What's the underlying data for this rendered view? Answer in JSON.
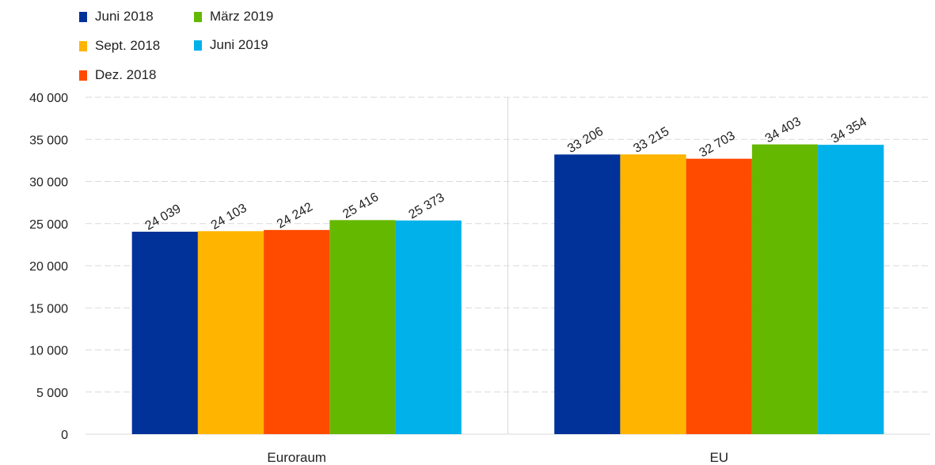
{
  "chart_data": {
    "type": "bar",
    "categories": [
      "Euroraum",
      "EU"
    ],
    "series": [
      {
        "name": "Juni 2018",
        "color": "#003299",
        "values": [
          24039,
          33206
        ],
        "labels": [
          "24 039",
          "33 206"
        ]
      },
      {
        "name": "Sept. 2018",
        "color": "#FFB400",
        "values": [
          24103,
          33215
        ],
        "labels": [
          "24 103",
          "33 215"
        ]
      },
      {
        "name": "Dez. 2018",
        "color": "#FF4B00",
        "values": [
          24242,
          32703
        ],
        "labels": [
          "24 242",
          "32 703"
        ]
      },
      {
        "name": "März 2019",
        "color": "#65B800",
        "values": [
          25416,
          34403
        ],
        "labels": [
          "25 416",
          "34 403"
        ]
      },
      {
        "name": "Juni 2019",
        "color": "#00B1EA",
        "values": [
          25373,
          34354
        ],
        "labels": [
          "25 373",
          "34 354"
        ]
      }
    ],
    "ylim": [
      0,
      40000
    ],
    "yticks": [
      0,
      5000,
      10000,
      15000,
      20000,
      25000,
      30000,
      35000,
      40000
    ],
    "ytick_labels": [
      "0",
      "5 000",
      "10 000",
      "15 000",
      "20 000",
      "25 000",
      "30 000",
      "35 000",
      "40 000"
    ],
    "grid": true,
    "legend_position": "top-left"
  }
}
